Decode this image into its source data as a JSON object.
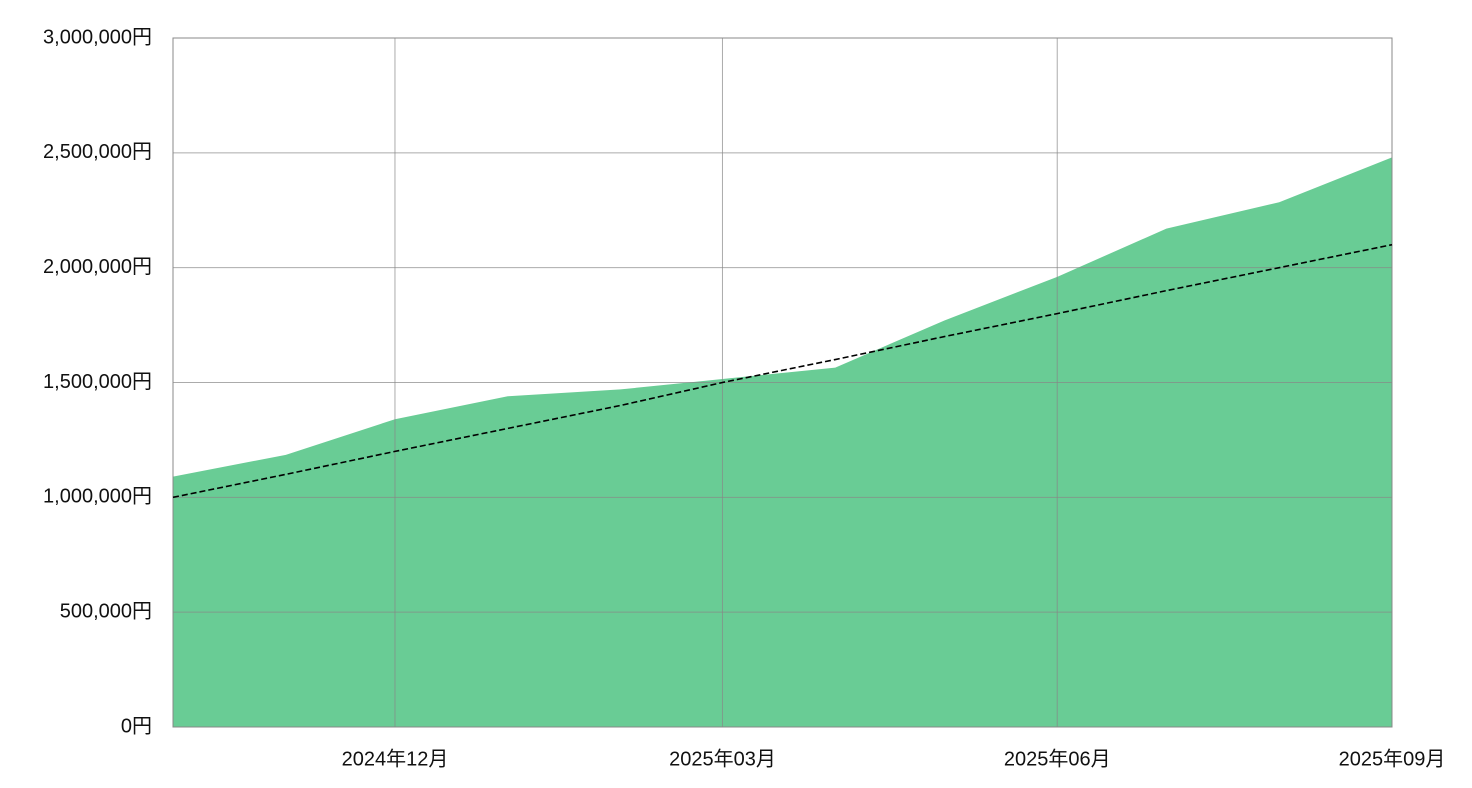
{
  "chart_data": {
    "type": "area",
    "x": [
      "2024-10",
      "2024-11",
      "2024-12",
      "2025-01",
      "2025-02",
      "2025-03",
      "2025-04",
      "2025-05",
      "2025-06",
      "2025-07",
      "2025-08",
      "2025-09"
    ],
    "series": [
      {
        "type": "area",
        "color": "#69cc95",
        "values": [
          1090000,
          1185000,
          1340000,
          1440000,
          1470000,
          1515000,
          1565000,
          1770000,
          1960000,
          2170000,
          2285000,
          2480000
        ]
      },
      {
        "type": "line",
        "color": "#000000",
        "dashed": true,
        "values": [
          1000000,
          1100000,
          1200000,
          1300000,
          1400000,
          1500000,
          1600000,
          1700000,
          1800000,
          1900000,
          2000000,
          2100000
        ]
      }
    ],
    "xlim": [
      "2024-10",
      "2025-09"
    ],
    "xticks": [
      {
        "value": "2024-12",
        "label": "2024年12月"
      },
      {
        "value": "2025-03",
        "label": "2025年03月"
      },
      {
        "value": "2025-06",
        "label": "2025年06月"
      },
      {
        "value": "2025-09",
        "label": "2025年09月"
      }
    ],
    "ylim": [
      0,
      3000000
    ],
    "yticks": [
      {
        "value": 0,
        "label": "0円"
      },
      {
        "value": 500000,
        "label": "500,000円"
      },
      {
        "value": 1000000,
        "label": "1,000,000円"
      },
      {
        "value": 1500000,
        "label": "1,500,000円"
      },
      {
        "value": 2000000,
        "label": "2,000,000円"
      },
      {
        "value": 2500000,
        "label": "2,500,000円"
      },
      {
        "value": 3000000,
        "label": "3,000,000円"
      }
    ],
    "grid": true
  }
}
